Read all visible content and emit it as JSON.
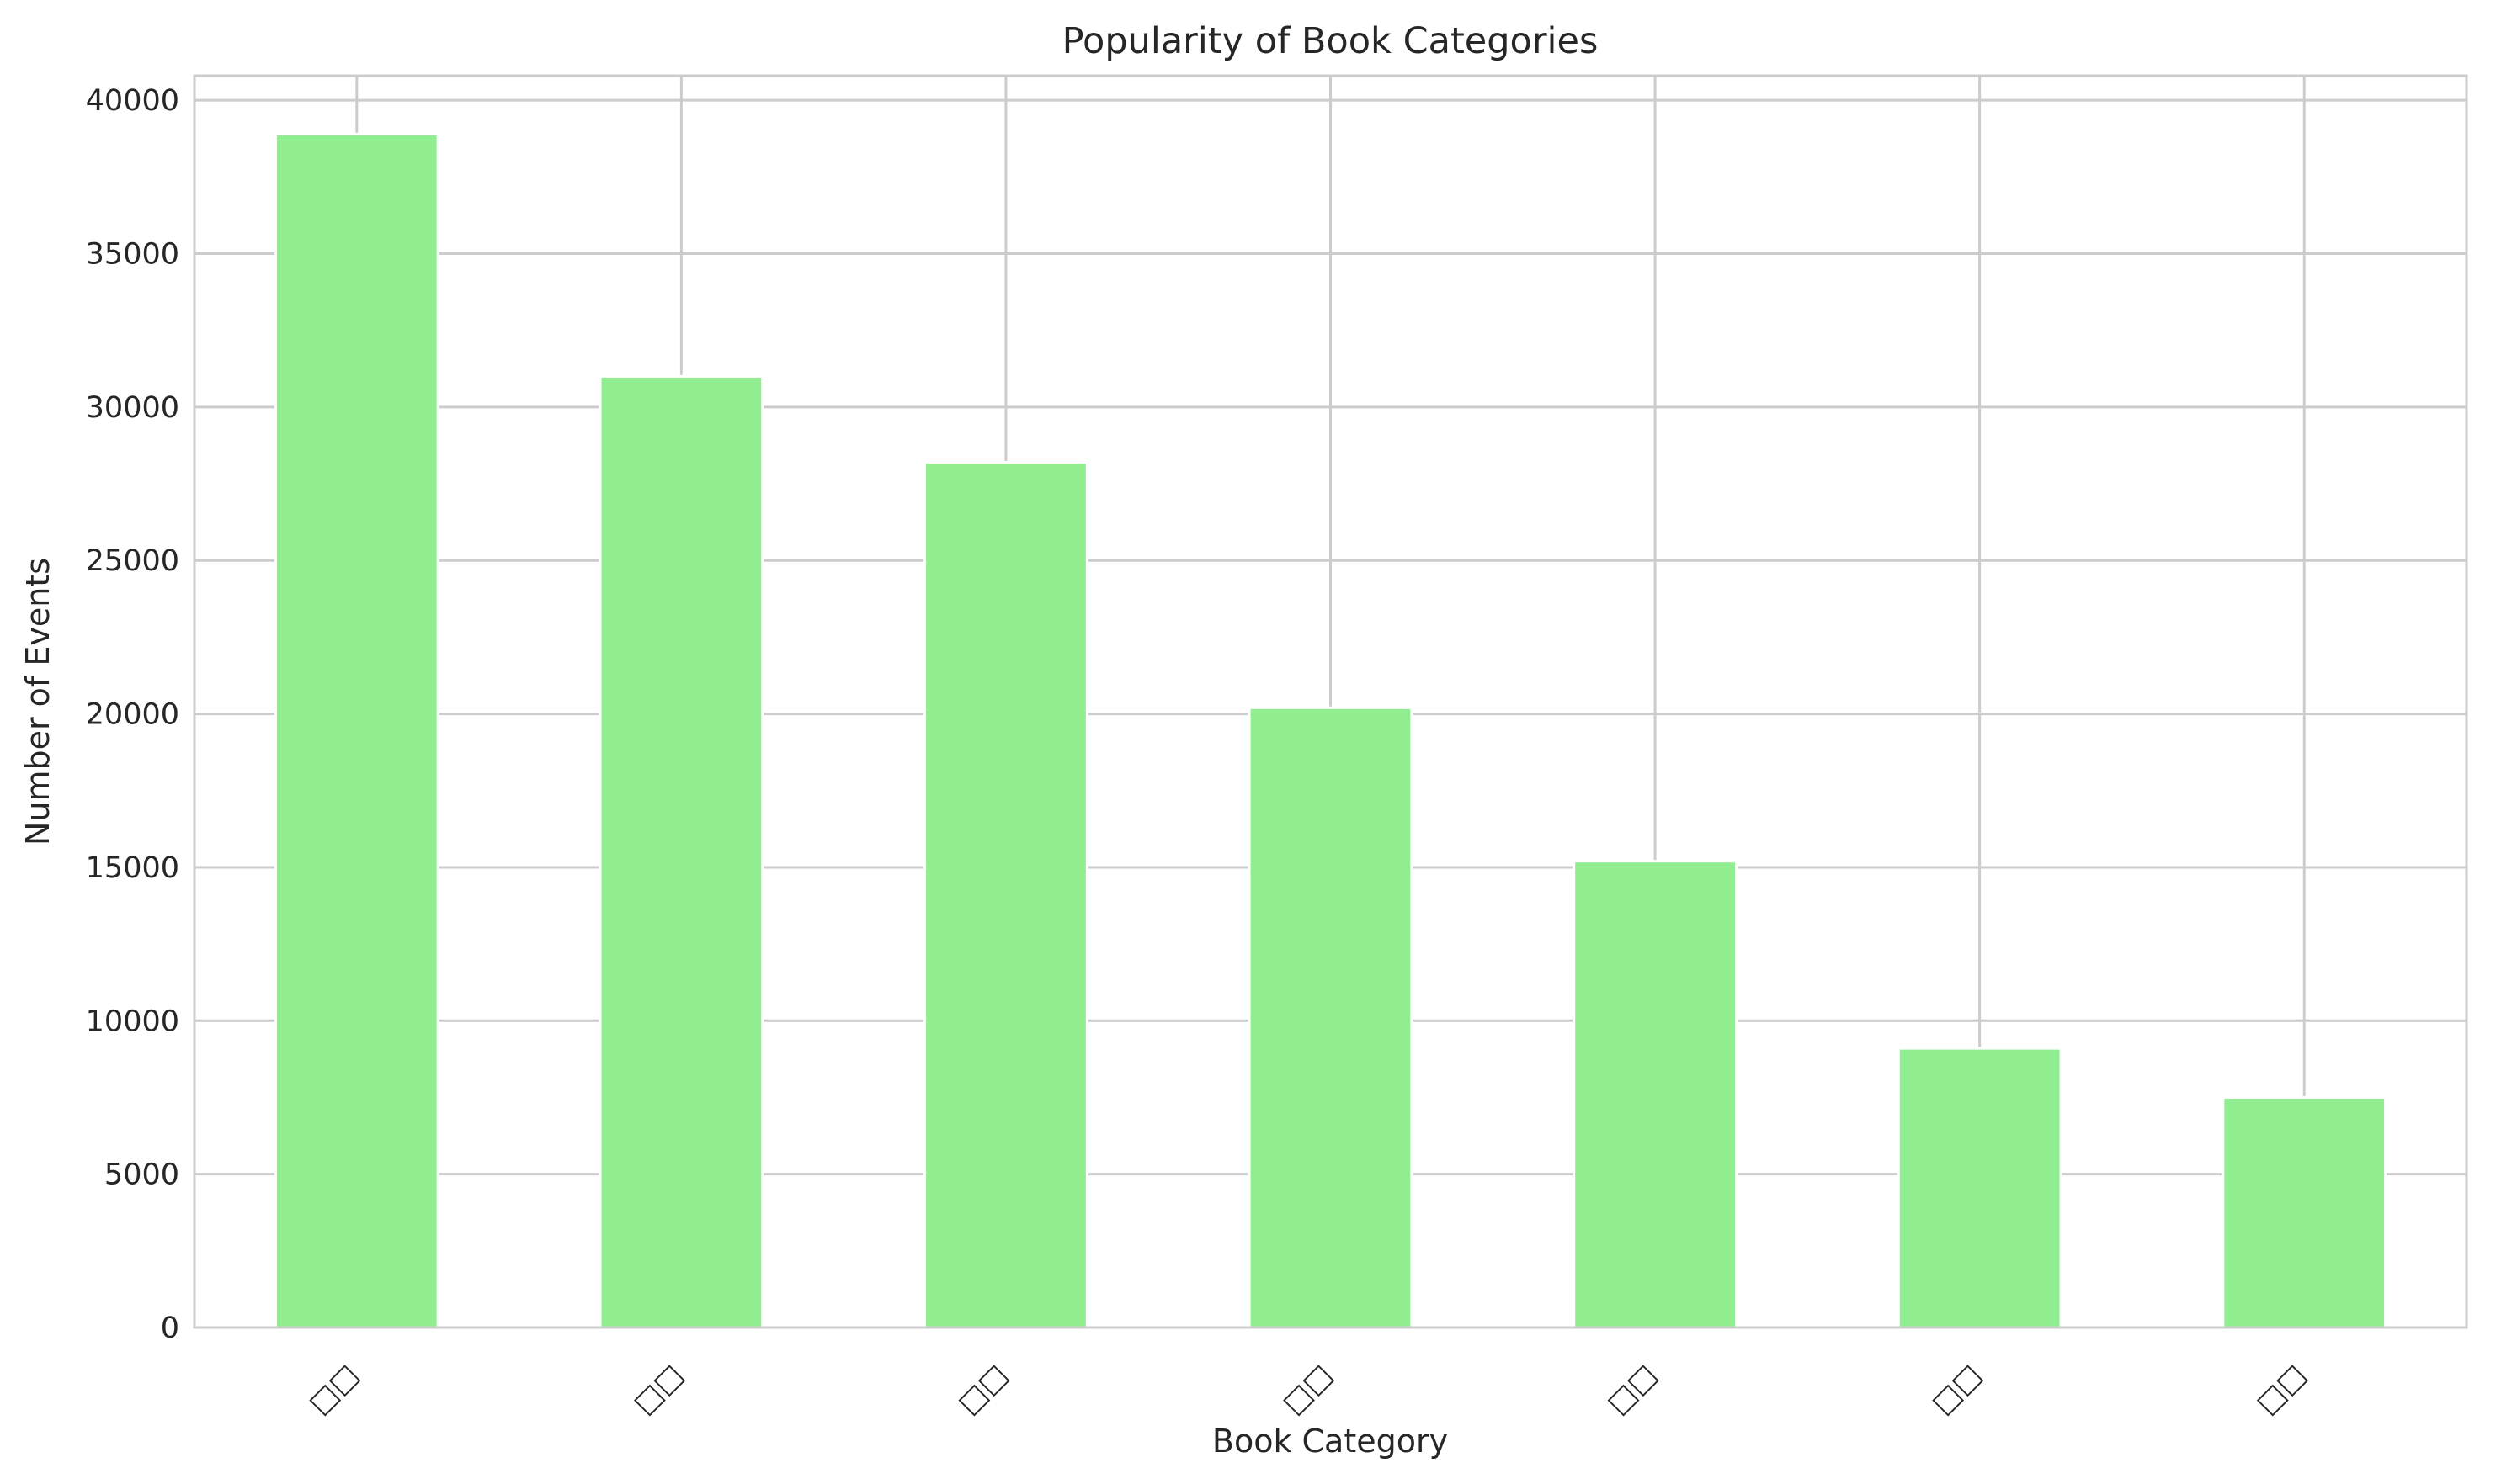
{
  "chart_data": {
    "type": "bar",
    "title": "Popularity of Book Categories",
    "xlabel": "Book Category",
    "ylabel": "Number of Events",
    "categories": [
      "□□",
      "□□",
      "□□",
      "□□",
      "□□",
      "□□",
      "□□"
    ],
    "values": [
      38900,
      31000,
      28200,
      20200,
      15200,
      9100,
      7500
    ],
    "ylim": [
      0,
      40800
    ],
    "yticks": [
      0,
      5000,
      10000,
      15000,
      20000,
      25000,
      30000,
      35000,
      40000
    ],
    "grid": true,
    "legend": "none",
    "bar_color": "#90ee90",
    "grid_color": "#cccccc"
  }
}
